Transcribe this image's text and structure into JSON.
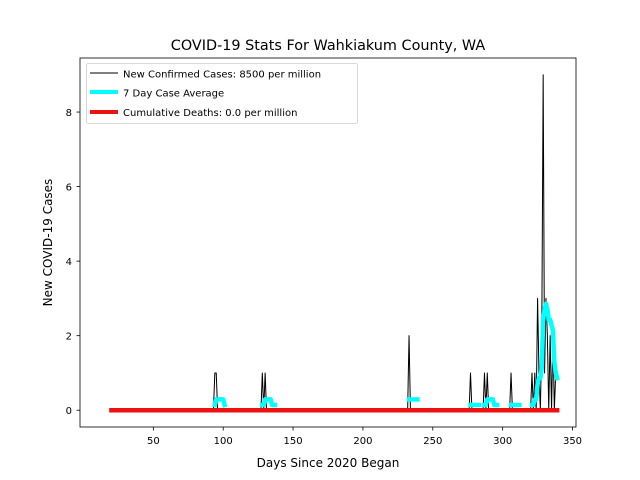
{
  "chart_data": {
    "type": "line",
    "title": "COVID-19 Stats For Wahkiakum County, WA",
    "xlabel": "Days Since 2020 Began",
    "ylabel": "New COVID-19 Cases",
    "xlim": [
      -2.5,
      352.5
    ],
    "ylim": [
      -0.45,
      9.45
    ],
    "xticks": [
      50,
      100,
      150,
      200,
      250,
      300,
      350
    ],
    "yticks": [
      0,
      2,
      4,
      6,
      8
    ],
    "grid": false,
    "legend_position": "top-left",
    "series": [
      {
        "name": "New Confirmed Cases: 8500 per million",
        "style": "thin-line",
        "color": "#000000",
        "x": [
          20,
          93,
          94,
          95,
          96,
          127,
          128,
          129,
          130,
          131,
          232,
          233,
          234,
          276,
          277,
          278,
          286,
          287,
          288,
          289,
          290,
          305,
          306,
          307,
          320,
          321,
          322,
          323,
          324,
          325,
          326,
          327,
          328,
          329,
          330,
          331,
          332,
          333,
          334,
          335,
          336,
          337,
          338,
          339
        ],
        "y": [
          0,
          0,
          1,
          1,
          0,
          0,
          1,
          0,
          1,
          0,
          0,
          2,
          0,
          0,
          1,
          0,
          0,
          1,
          0,
          1,
          0,
          0,
          1,
          0,
          0,
          1,
          0,
          1,
          0,
          3,
          1,
          0,
          2,
          9,
          1,
          3,
          2,
          0,
          2,
          0,
          2,
          0,
          1,
          1
        ]
      },
      {
        "name": "7 Day Case Average",
        "style": "thick-line",
        "color": "#00ffff",
        "segments": [
          {
            "x": [
              94,
              95,
              96,
              97,
              98,
              99,
              100,
              101
            ],
            "y": [
              0.14,
              0.29,
              0.29,
              0.29,
              0.29,
              0.29,
              0.29,
              0.14
            ]
          },
          {
            "x": [
              128,
              129,
              130,
              131,
              132,
              133,
              134,
              135,
              136,
              137
            ],
            "y": [
              0.14,
              0.14,
              0.29,
              0.29,
              0.29,
              0.29,
              0.29,
              0.14,
              0.14,
              0.14
            ]
          },
          {
            "x": [
              233,
              234,
              235,
              236,
              237,
              238,
              239
            ],
            "y": [
              0.29,
              0.29,
              0.29,
              0.29,
              0.29,
              0.29,
              0.29
            ]
          },
          {
            "x": [
              277,
              278,
              279,
              280,
              281,
              282,
              283
            ],
            "y": [
              0.14,
              0.14,
              0.14,
              0.14,
              0.14,
              0.14,
              0.14
            ]
          },
          {
            "x": [
              287,
              288,
              289,
              290,
              291,
              292,
              293,
              294,
              295,
              296
            ],
            "y": [
              0.14,
              0.14,
              0.29,
              0.29,
              0.29,
              0.29,
              0.29,
              0.14,
              0.14,
              0.14
            ]
          },
          {
            "x": [
              306,
              307,
              308,
              309,
              310,
              311,
              312
            ],
            "y": [
              0.14,
              0.14,
              0.14,
              0.14,
              0.14,
              0.14,
              0.14
            ]
          },
          {
            "x": [
              321,
              322,
              323,
              324,
              325,
              326,
              327,
              328,
              329,
              330,
              331,
              332,
              333,
              334,
              335,
              336,
              337,
              338,
              339
            ],
            "y": [
              0.14,
              0.14,
              0.29,
              0.29,
              0.71,
              0.86,
              0.86,
              1.14,
              2.43,
              2.71,
              2.86,
              2.71,
              2.43,
              2.43,
              2.29,
              2.14,
              1.29,
              1.0,
              0.86
            ]
          }
        ]
      },
      {
        "name": "Cumulative Deaths: 0.0 per million",
        "style": "thick-line",
        "color": "#ee1111",
        "x": [
          20,
          339
        ],
        "y": [
          0,
          0
        ]
      }
    ]
  }
}
